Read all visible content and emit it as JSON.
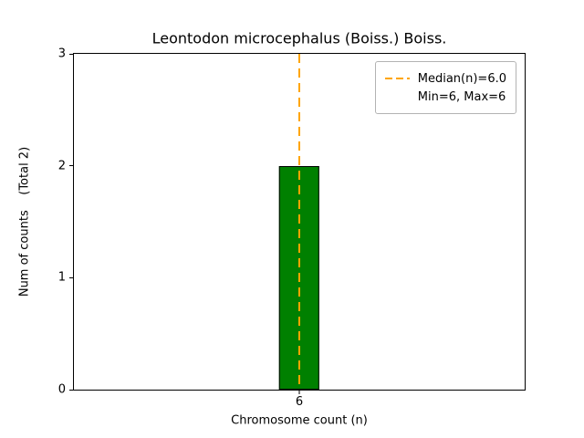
{
  "chart_data": {
    "type": "bar",
    "title": "Leontodon microcephalus (Boiss.) Boiss.",
    "xlabel": "Chromosome count (n)",
    "ylabel": "Num of counts    (Total 2)",
    "categories": [
      "6"
    ],
    "values": [
      2
    ],
    "ylim": [
      0,
      3
    ],
    "yticks": [
      0,
      1,
      2,
      3
    ],
    "total": 2,
    "median": 6.0,
    "min": 6,
    "max": 6,
    "bar_color": "#008000",
    "bar_edge_color": "#000000",
    "median_line_color": "#ffa500",
    "legend_position": "upper right",
    "grid": false,
    "legend": [
      "Median(n)=6.0",
      "Min=6, Max=6"
    ]
  }
}
